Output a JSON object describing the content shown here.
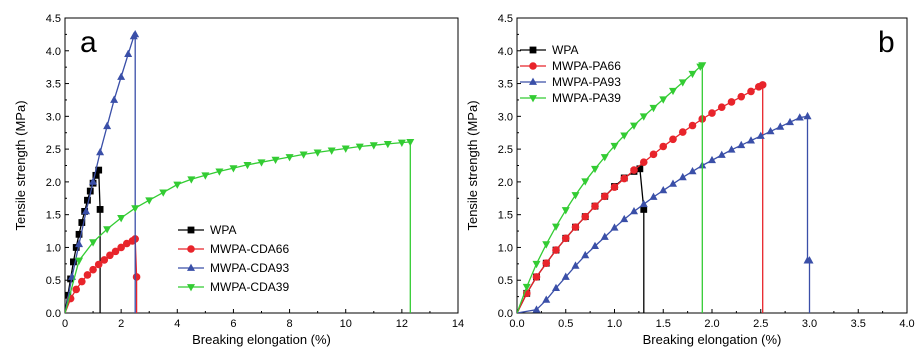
{
  "chart_data": [
    {
      "type": "line",
      "panel_label": "a",
      "xlabel": "Breaking elongation (%)",
      "ylabel": "Tensile strength (MPa)",
      "xlim": [
        0,
        14
      ],
      "ylim": [
        0,
        4.5
      ],
      "xticks": [
        "0",
        "2",
        "4",
        "6",
        "8",
        "10",
        "12",
        "14"
      ],
      "yticks": [
        "0.0",
        "0.5",
        "1.0",
        "1.5",
        "2.0",
        "2.5",
        "3.0",
        "3.5",
        "4.0",
        "4.5"
      ],
      "grid": false,
      "legend_position": "lower-middle",
      "series": [
        {
          "name": "WPA",
          "color": "#000000",
          "marker": "square",
          "x": [
            0.0,
            0.1,
            0.2,
            0.3,
            0.4,
            0.5,
            0.6,
            0.7,
            0.8,
            0.9,
            1.0,
            1.1,
            1.2,
            1.25,
            1.25
          ],
          "y": [
            0.0,
            0.27,
            0.52,
            0.78,
            1.0,
            1.2,
            1.38,
            1.55,
            1.72,
            1.86,
            1.98,
            2.1,
            2.18,
            1.58,
            0.0
          ]
        },
        {
          "name": "MWPA-CDA66",
          "color": "#e8242b",
          "marker": "circle",
          "x": [
            0.0,
            0.2,
            0.4,
            0.6,
            0.8,
            1.0,
            1.2,
            1.4,
            1.6,
            1.8,
            2.0,
            2.2,
            2.4,
            2.5,
            2.55,
            2.55
          ],
          "y": [
            0.0,
            0.22,
            0.36,
            0.48,
            0.58,
            0.66,
            0.74,
            0.81,
            0.88,
            0.94,
            1.0,
            1.06,
            1.1,
            1.13,
            0.55,
            0.0
          ]
        },
        {
          "name": "MWPA-CDA93",
          "color": "#3a4fa8",
          "marker": "triangle-up",
          "x": [
            0.0,
            0.25,
            0.5,
            0.75,
            1.0,
            1.25,
            1.5,
            1.75,
            2.0,
            2.25,
            2.45,
            2.5,
            2.5
          ],
          "y": [
            0.0,
            0.55,
            1.05,
            1.55,
            2.0,
            2.45,
            2.85,
            3.25,
            3.6,
            3.95,
            4.22,
            4.25,
            0.0
          ]
        },
        {
          "name": "MWPA-CDA39",
          "color": "#33cc33",
          "marker": "triangle-down",
          "x": [
            0.0,
            0.5,
            1.0,
            1.5,
            2.0,
            2.5,
            3.0,
            3.5,
            4.0,
            4.5,
            5.0,
            5.5,
            6.0,
            6.5,
            7.0,
            7.5,
            8.0,
            8.5,
            9.0,
            9.5,
            10.0,
            10.5,
            11.0,
            11.5,
            12.0,
            12.3,
            12.3
          ],
          "y": [
            0.0,
            0.8,
            1.08,
            1.28,
            1.45,
            1.6,
            1.72,
            1.84,
            1.96,
            2.04,
            2.1,
            2.16,
            2.21,
            2.26,
            2.3,
            2.34,
            2.38,
            2.42,
            2.45,
            2.48,
            2.51,
            2.54,
            2.56,
            2.58,
            2.6,
            2.61,
            0.0
          ]
        }
      ]
    },
    {
      "type": "line",
      "panel_label": "b",
      "xlabel": "Breaking elongation (%)",
      "ylabel": "Tensile strength (MPa)",
      "xlim": [
        0,
        4.0
      ],
      "ylim": [
        0,
        4.5
      ],
      "xticks": [
        "0.0",
        "0.5",
        "1.0",
        "1.5",
        "2.0",
        "2.5",
        "3.0",
        "3.5",
        "4.0"
      ],
      "yticks": [
        "0.0",
        "0.5",
        "1.0",
        "1.5",
        "2.0",
        "2.5",
        "3.0",
        "3.5",
        "4.0",
        "4.5"
      ],
      "grid": false,
      "legend_position": "top-left",
      "series": [
        {
          "name": "WPA",
          "color": "#000000",
          "marker": "square",
          "x": [
            0.0,
            0.1,
            0.2,
            0.3,
            0.4,
            0.5,
            0.6,
            0.7,
            0.8,
            0.9,
            1.0,
            1.1,
            1.2,
            1.26,
            1.3,
            1.3
          ],
          "y": [
            0.0,
            0.3,
            0.55,
            0.76,
            0.96,
            1.14,
            1.31,
            1.47,
            1.63,
            1.78,
            1.93,
            2.06,
            2.16,
            2.2,
            1.58,
            0.0
          ]
        },
        {
          "name": "MWPA-PA66",
          "color": "#e8242b",
          "marker": "circle",
          "x": [
            0.0,
            0.1,
            0.2,
            0.3,
            0.4,
            0.5,
            0.6,
            0.7,
            0.8,
            0.9,
            1.0,
            1.1,
            1.2,
            1.3,
            1.4,
            1.5,
            1.6,
            1.7,
            1.8,
            1.9,
            2.0,
            2.1,
            2.2,
            2.3,
            2.4,
            2.48,
            2.52,
            2.52
          ],
          "y": [
            0.0,
            0.3,
            0.55,
            0.76,
            0.96,
            1.14,
            1.31,
            1.47,
            1.63,
            1.78,
            1.92,
            2.05,
            2.18,
            2.3,
            2.42,
            2.54,
            2.65,
            2.76,
            2.86,
            2.96,
            3.05,
            3.14,
            3.22,
            3.3,
            3.38,
            3.45,
            3.48,
            0.0
          ]
        },
        {
          "name": "MWPA-PA93",
          "color": "#3a4fa8",
          "marker": "triangle-up",
          "x": [
            0.0,
            0.2,
            0.3,
            0.4,
            0.5,
            0.6,
            0.7,
            0.8,
            0.9,
            1.0,
            1.1,
            1.2,
            1.3,
            1.4,
            1.5,
            1.6,
            1.7,
            1.8,
            1.9,
            2.0,
            2.1,
            2.2,
            2.3,
            2.4,
            2.5,
            2.6,
            2.7,
            2.8,
            2.9,
            2.98,
            2.98,
            3.0,
            3.0
          ],
          "y": [
            0.0,
            0.05,
            0.2,
            0.38,
            0.55,
            0.72,
            0.88,
            1.02,
            1.16,
            1.3,
            1.43,
            1.55,
            1.66,
            1.77,
            1.87,
            1.97,
            2.07,
            2.16,
            2.25,
            2.33,
            2.41,
            2.49,
            2.56,
            2.63,
            2.7,
            2.77,
            2.84,
            2.91,
            2.98,
            3.0,
            0.8,
            0.8,
            0.0
          ]
        },
        {
          "name": "MWPA-PA39",
          "color": "#33cc33",
          "marker": "triangle-down",
          "x": [
            0.0,
            0.1,
            0.2,
            0.3,
            0.4,
            0.5,
            0.6,
            0.7,
            0.8,
            0.9,
            1.0,
            1.1,
            1.2,
            1.3,
            1.4,
            1.5,
            1.6,
            1.7,
            1.8,
            1.88,
            1.9,
            1.9
          ],
          "y": [
            0.0,
            0.4,
            0.75,
            1.05,
            1.32,
            1.57,
            1.8,
            2.01,
            2.2,
            2.38,
            2.55,
            2.71,
            2.86,
            3.0,
            3.13,
            3.26,
            3.39,
            3.52,
            3.65,
            3.76,
            3.78,
            0.0
          ]
        }
      ]
    }
  ]
}
